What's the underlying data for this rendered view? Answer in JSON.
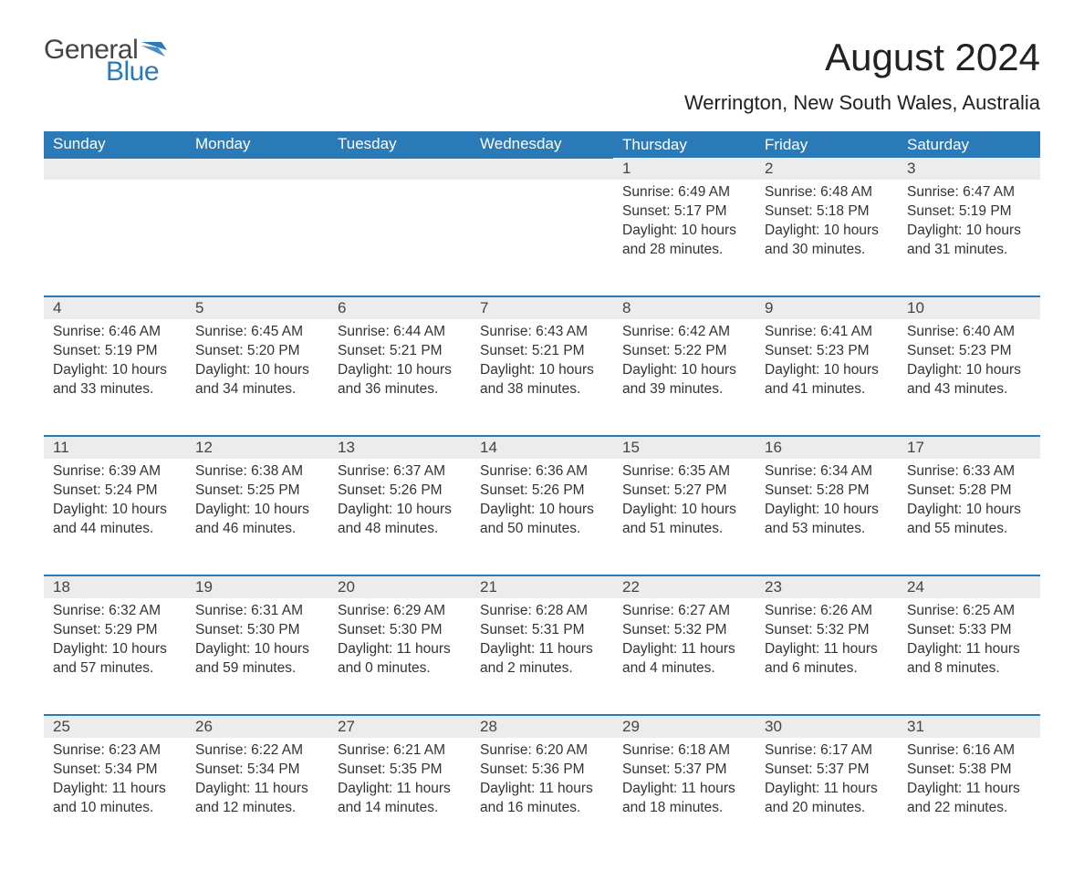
{
  "logo": {
    "word1": "General",
    "word2": "Blue",
    "flag_color": "#2a7ab8"
  },
  "title": "August 2024",
  "location": "Werrington, New South Wales, Australia",
  "colors": {
    "header_bg": "#2a7ab8",
    "header_fg": "#ffffff",
    "daynum_bg": "#ececec",
    "rule": "#2a7ab8",
    "text": "#333333"
  },
  "day_labels": [
    "Sunday",
    "Monday",
    "Tuesday",
    "Wednesday",
    "Thursday",
    "Friday",
    "Saturday"
  ],
  "weeks": [
    [
      null,
      null,
      null,
      null,
      {
        "n": "1",
        "sunrise": "6:49 AM",
        "sunset": "5:17 PM",
        "dl": "10 hours and 28 minutes."
      },
      {
        "n": "2",
        "sunrise": "6:48 AM",
        "sunset": "5:18 PM",
        "dl": "10 hours and 30 minutes."
      },
      {
        "n": "3",
        "sunrise": "6:47 AM",
        "sunset": "5:19 PM",
        "dl": "10 hours and 31 minutes."
      }
    ],
    [
      {
        "n": "4",
        "sunrise": "6:46 AM",
        "sunset": "5:19 PM",
        "dl": "10 hours and 33 minutes."
      },
      {
        "n": "5",
        "sunrise": "6:45 AM",
        "sunset": "5:20 PM",
        "dl": "10 hours and 34 minutes."
      },
      {
        "n": "6",
        "sunrise": "6:44 AM",
        "sunset": "5:21 PM",
        "dl": "10 hours and 36 minutes."
      },
      {
        "n": "7",
        "sunrise": "6:43 AM",
        "sunset": "5:21 PM",
        "dl": "10 hours and 38 minutes."
      },
      {
        "n": "8",
        "sunrise": "6:42 AM",
        "sunset": "5:22 PM",
        "dl": "10 hours and 39 minutes."
      },
      {
        "n": "9",
        "sunrise": "6:41 AM",
        "sunset": "5:23 PM",
        "dl": "10 hours and 41 minutes."
      },
      {
        "n": "10",
        "sunrise": "6:40 AM",
        "sunset": "5:23 PM",
        "dl": "10 hours and 43 minutes."
      }
    ],
    [
      {
        "n": "11",
        "sunrise": "6:39 AM",
        "sunset": "5:24 PM",
        "dl": "10 hours and 44 minutes."
      },
      {
        "n": "12",
        "sunrise": "6:38 AM",
        "sunset": "5:25 PM",
        "dl": "10 hours and 46 minutes."
      },
      {
        "n": "13",
        "sunrise": "6:37 AM",
        "sunset": "5:26 PM",
        "dl": "10 hours and 48 minutes."
      },
      {
        "n": "14",
        "sunrise": "6:36 AM",
        "sunset": "5:26 PM",
        "dl": "10 hours and 50 minutes."
      },
      {
        "n": "15",
        "sunrise": "6:35 AM",
        "sunset": "5:27 PM",
        "dl": "10 hours and 51 minutes."
      },
      {
        "n": "16",
        "sunrise": "6:34 AM",
        "sunset": "5:28 PM",
        "dl": "10 hours and 53 minutes."
      },
      {
        "n": "17",
        "sunrise": "6:33 AM",
        "sunset": "5:28 PM",
        "dl": "10 hours and 55 minutes."
      }
    ],
    [
      {
        "n": "18",
        "sunrise": "6:32 AM",
        "sunset": "5:29 PM",
        "dl": "10 hours and 57 minutes."
      },
      {
        "n": "19",
        "sunrise": "6:31 AM",
        "sunset": "5:30 PM",
        "dl": "10 hours and 59 minutes."
      },
      {
        "n": "20",
        "sunrise": "6:29 AM",
        "sunset": "5:30 PM",
        "dl": "11 hours and 0 minutes."
      },
      {
        "n": "21",
        "sunrise": "6:28 AM",
        "sunset": "5:31 PM",
        "dl": "11 hours and 2 minutes."
      },
      {
        "n": "22",
        "sunrise": "6:27 AM",
        "sunset": "5:32 PM",
        "dl": "11 hours and 4 minutes."
      },
      {
        "n": "23",
        "sunrise": "6:26 AM",
        "sunset": "5:32 PM",
        "dl": "11 hours and 6 minutes."
      },
      {
        "n": "24",
        "sunrise": "6:25 AM",
        "sunset": "5:33 PM",
        "dl": "11 hours and 8 minutes."
      }
    ],
    [
      {
        "n": "25",
        "sunrise": "6:23 AM",
        "sunset": "5:34 PM",
        "dl": "11 hours and 10 minutes."
      },
      {
        "n": "26",
        "sunrise": "6:22 AM",
        "sunset": "5:34 PM",
        "dl": "11 hours and 12 minutes."
      },
      {
        "n": "27",
        "sunrise": "6:21 AM",
        "sunset": "5:35 PM",
        "dl": "11 hours and 14 minutes."
      },
      {
        "n": "28",
        "sunrise": "6:20 AM",
        "sunset": "5:36 PM",
        "dl": "11 hours and 16 minutes."
      },
      {
        "n": "29",
        "sunrise": "6:18 AM",
        "sunset": "5:37 PM",
        "dl": "11 hours and 18 minutes."
      },
      {
        "n": "30",
        "sunrise": "6:17 AM",
        "sunset": "5:37 PM",
        "dl": "11 hours and 20 minutes."
      },
      {
        "n": "31",
        "sunrise": "6:16 AM",
        "sunset": "5:38 PM",
        "dl": "11 hours and 22 minutes."
      }
    ]
  ],
  "field_labels": {
    "sunrise": "Sunrise: ",
    "sunset": "Sunset: ",
    "daylight": "Daylight: "
  }
}
